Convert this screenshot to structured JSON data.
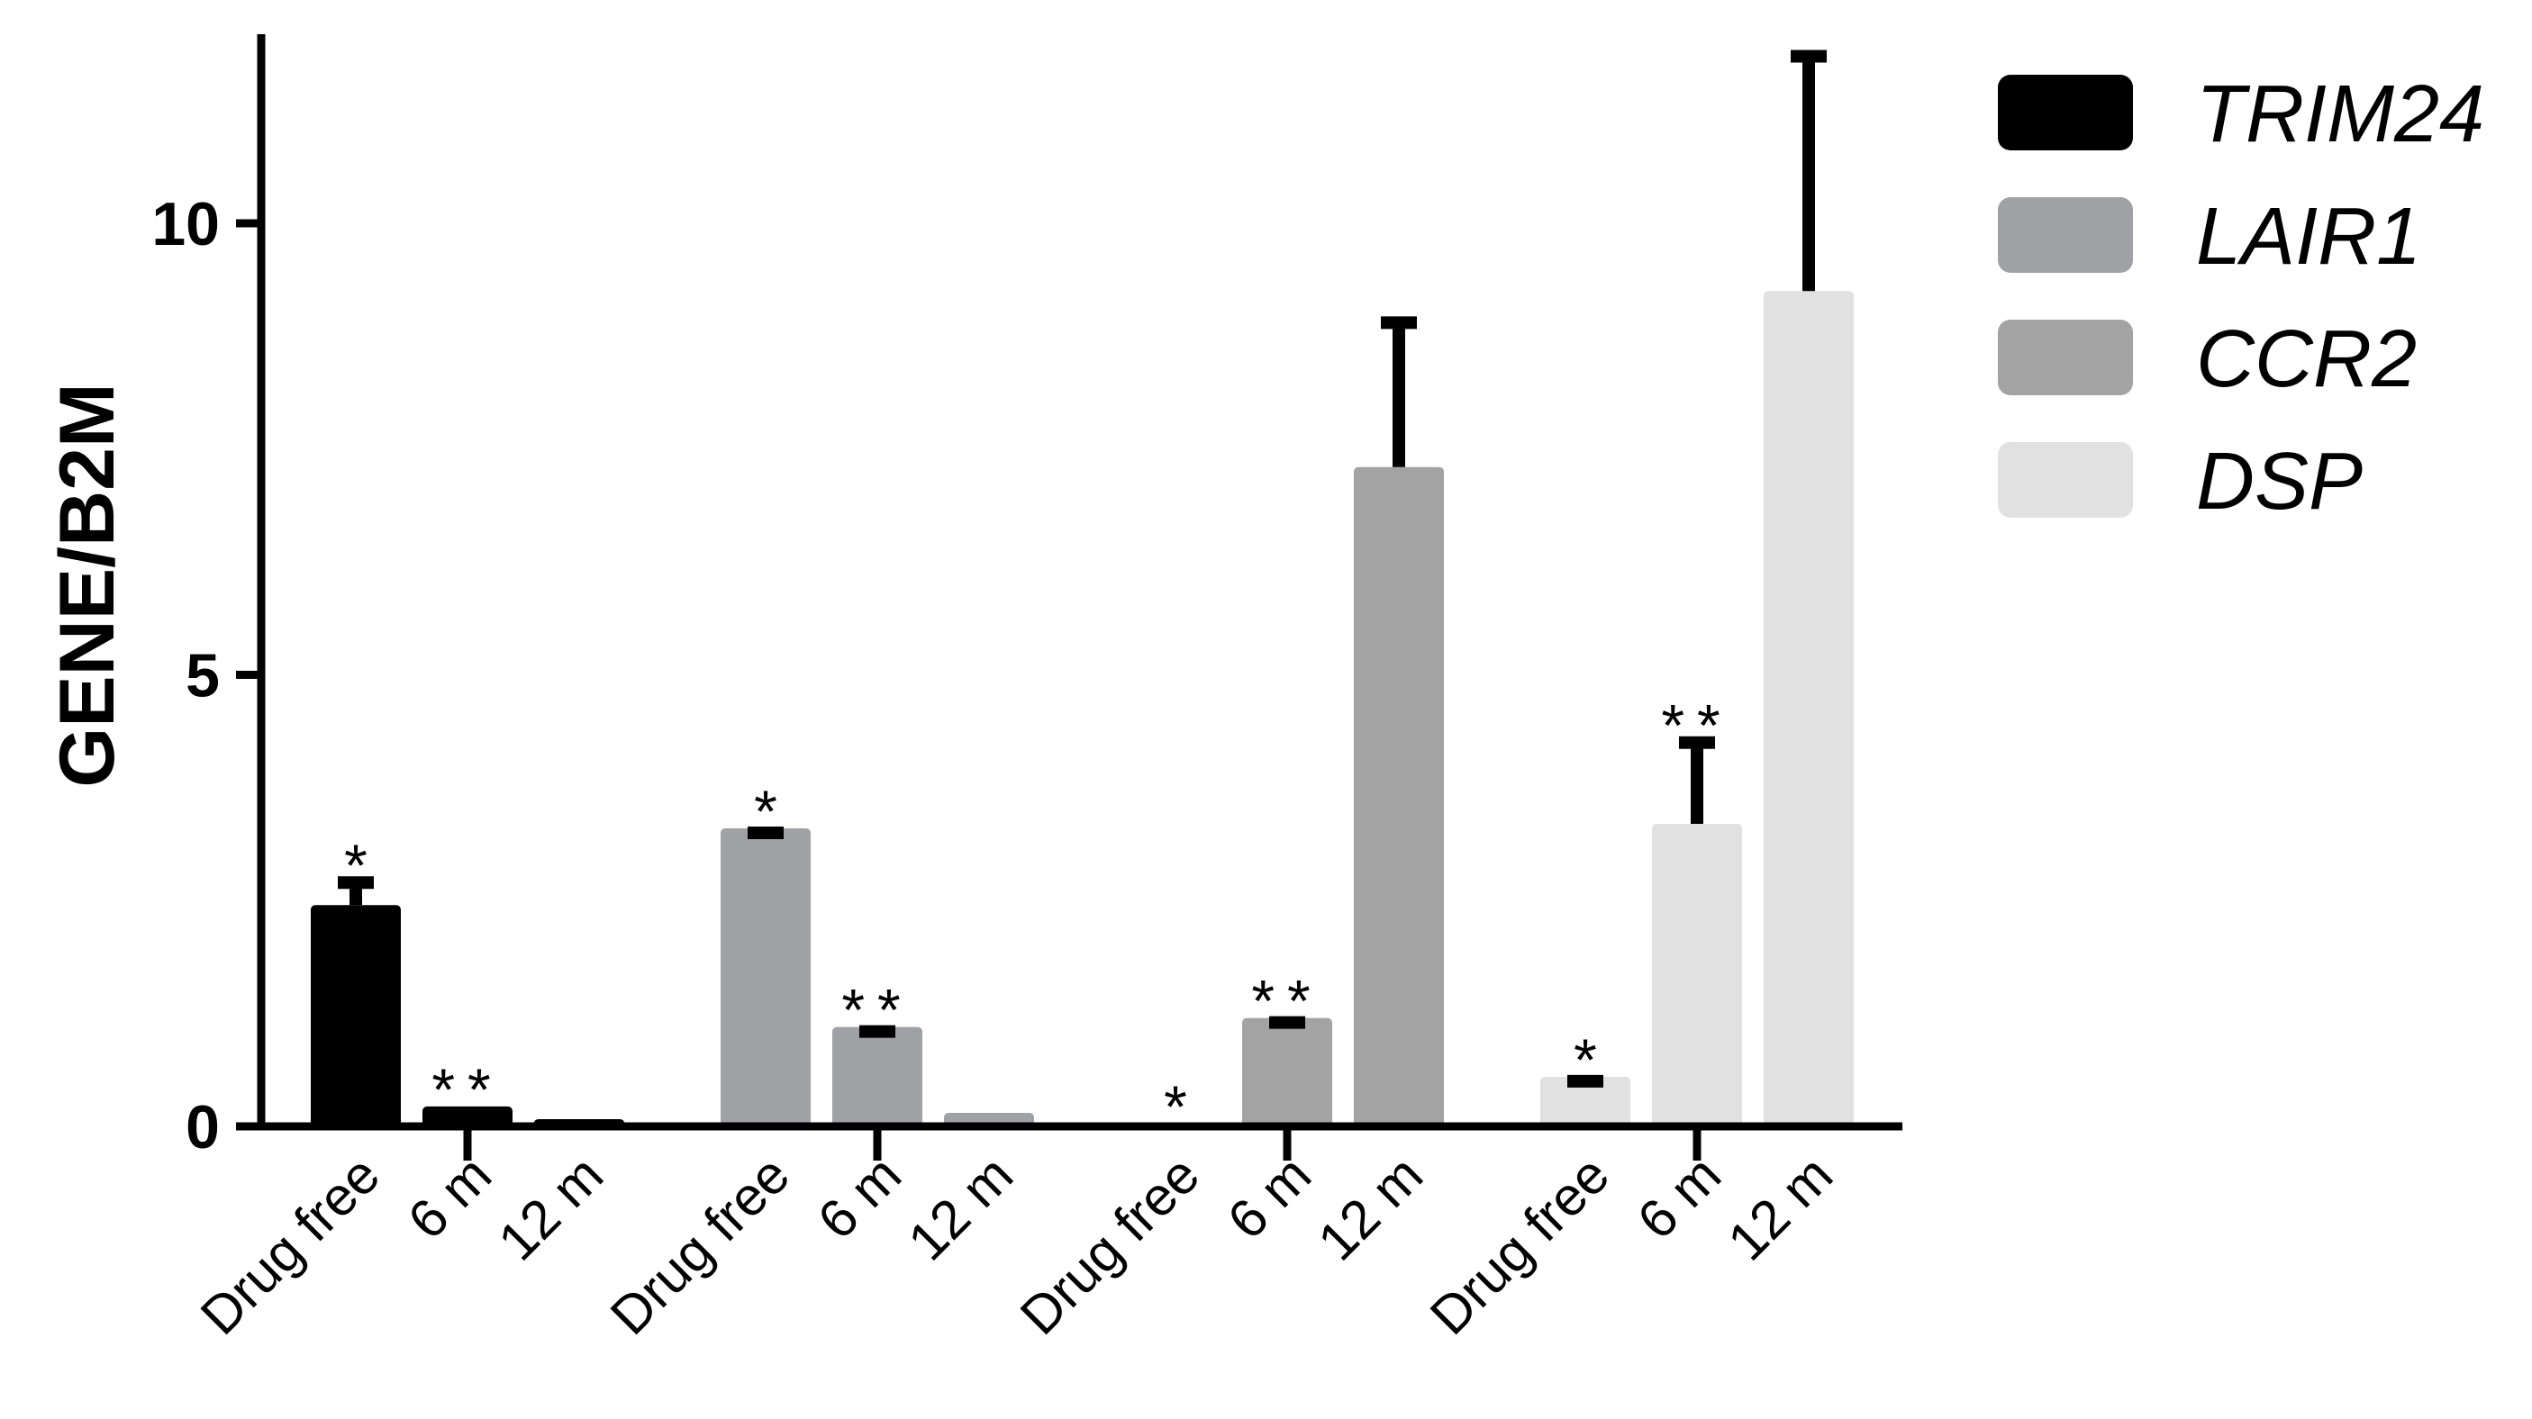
{
  "chart_data": {
    "type": "bar",
    "ylabel": "GENE/B2M",
    "ylim": [
      0,
      12
    ],
    "y_ticks": [
      0,
      5,
      10
    ],
    "legend_position": "right",
    "categories": [
      "Drug free",
      "6 m",
      "12 m"
    ],
    "groups": [
      {
        "name": "TRIM24",
        "color": "#000000",
        "values": [
          2.45,
          0.22,
          0.08
        ],
        "errors": [
          0.25,
          0.0,
          0.0
        ],
        "significance": [
          "*",
          "**",
          ""
        ]
      },
      {
        "name": "LAIR1",
        "color": "#a0a1a4",
        "values": [
          3.3,
          1.1,
          0.15
        ],
        "errors": [
          0.0,
          0.0,
          0.0
        ],
        "significance": [
          "*",
          "**",
          ""
        ]
      },
      {
        "name": "CCR2",
        "color": "#a3a3a3",
        "values": [
          0.03,
          1.2,
          7.3
        ],
        "errors": [
          0.0,
          0.0,
          1.6
        ],
        "significance": [
          "*",
          "**",
          ""
        ]
      },
      {
        "name": "DSP",
        "color": "#e1e1e1",
        "values": [
          0.55,
          3.35,
          9.25
        ],
        "errors": [
          0.0,
          0.9,
          2.6
        ],
        "significance": [
          "*",
          "**",
          ""
        ]
      }
    ]
  }
}
